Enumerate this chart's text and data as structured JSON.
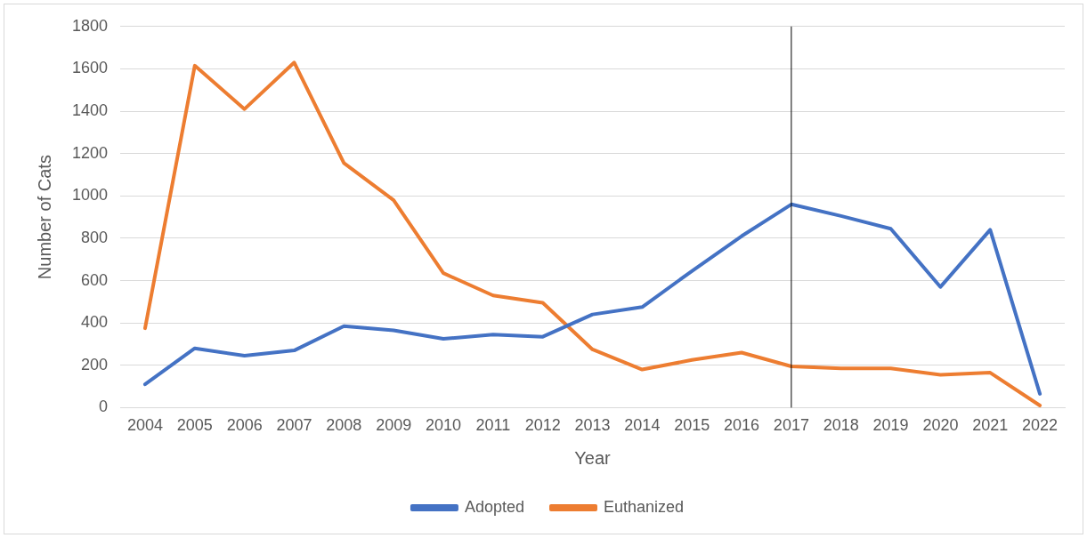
{
  "chart_data": {
    "type": "line",
    "xlabel": "Year",
    "ylabel": "Number of Cats",
    "categories": [
      "2004",
      "2005",
      "2006",
      "2007",
      "2008",
      "2009",
      "2010",
      "2011",
      "2012",
      "2013",
      "2014",
      "2015",
      "2016",
      "2017",
      "2018",
      "2019",
      "2020",
      "2021",
      "2022"
    ],
    "series": [
      {
        "name": "Adopted",
        "color": "#4472c4",
        "values": [
          110,
          280,
          245,
          270,
          385,
          365,
          325,
          345,
          335,
          440,
          475,
          645,
          810,
          960,
          905,
          845,
          570,
          840,
          65
        ]
      },
      {
        "name": "Euthanized",
        "color": "#ed7d31",
        "values": [
          375,
          1615,
          1410,
          1630,
          1155,
          980,
          635,
          530,
          495,
          275,
          180,
          225,
          260,
          195,
          185,
          185,
          155,
          165,
          10
        ]
      }
    ],
    "ylim": [
      0,
      1800
    ],
    "yticks": [
      0,
      200,
      400,
      600,
      800,
      1000,
      1200,
      1400,
      1600,
      1800
    ],
    "grid": "y",
    "legend": "bottom",
    "marker": "none",
    "line_style": "solid",
    "ref_lines": [
      {
        "axis": "x",
        "value": "2017",
        "color": "#000000"
      }
    ]
  }
}
